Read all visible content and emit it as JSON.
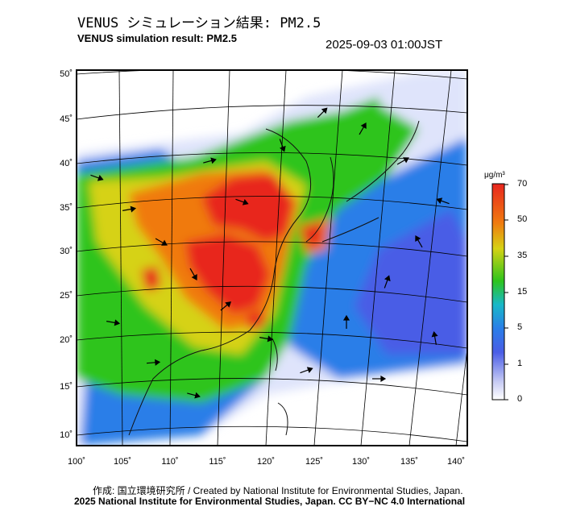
{
  "header": {
    "title_jp": "VENUS シミュレーション結果: PM2.5",
    "title_en": "VENUS simulation result: PM2.5",
    "timestamp": "2025-09-03 01:00JST"
  },
  "map": {
    "variable": "PM2.5",
    "lat_ticks": [
      "50˚",
      "45˚",
      "40˚",
      "35˚",
      "30˚",
      "25˚",
      "20˚",
      "15˚",
      "10˚"
    ],
    "lon_ticks": [
      "100˚",
      "105˚",
      "110˚",
      "115˚",
      "120˚",
      "125˚",
      "130˚",
      "135˚",
      "140˚"
    ],
    "colors": {
      "very_high": "#e8261e",
      "high": "#f07a10",
      "mid": "#d6d214",
      "moderate": "#2ec41c",
      "low": "#18b8a8",
      "lower": "#2a7ee8",
      "lowest": "#4a5de6",
      "clean": "#dfe4fb"
    }
  },
  "colorbar": {
    "unit": "μg/m³",
    "ticks": [
      "70",
      "50",
      "35",
      "15",
      "5",
      "1",
      "0"
    ]
  },
  "footer": {
    "credit_1": "作成: 国立環境研究所 / Created by National Institute for Environmental Studies, Japan.",
    "credit_2": "2025 National Institute for Environmental Studies, Japan. CC BY−NC 4.0 International"
  }
}
